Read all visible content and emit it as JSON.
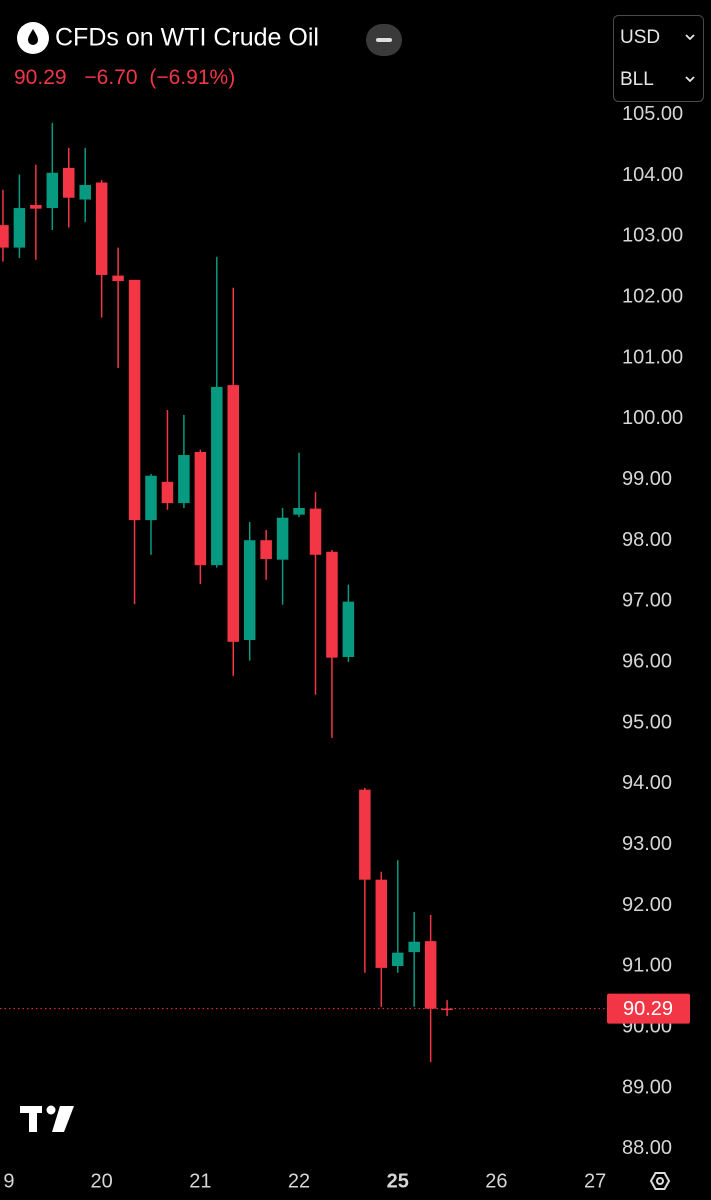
{
  "chart_data": {
    "type": "candlestick",
    "title": "CFDs on WTI Crude Oil",
    "quote": {
      "last": "90.29",
      "change": "−6.70",
      "change_pct": "(−6.91%)"
    },
    "currency": "USD",
    "unit": "BLL",
    "x": [
      0,
      1,
      2,
      3,
      4,
      5,
      6,
      7,
      8,
      9,
      10,
      11,
      12,
      13,
      14,
      15,
      16,
      17,
      18,
      19,
      20,
      21,
      22,
      23,
      24,
      25,
      26,
      27
    ],
    "open": [
      103.17,
      102.8,
      103.5,
      103.45,
      104.11,
      103.59,
      103.87,
      102.34,
      102.27,
      98.32,
      98.95,
      98.6,
      99.44,
      97.58,
      100.54,
      96.35,
      97.99,
      97.67,
      98.41,
      98.51,
      97.8,
      96.07,
      93.89,
      92.41,
      90.99,
      91.22,
      91.4,
      90.29
    ],
    "high": [
      103.75,
      104.0,
      104.16,
      104.85,
      104.44,
      104.44,
      103.91,
      102.8,
      102.27,
      99.08,
      100.13,
      100.05,
      99.48,
      102.65,
      102.14,
      98.29,
      98.16,
      98.52,
      99.43,
      98.78,
      97.83,
      97.26,
      93.92,
      92.54,
      92.73,
      91.88,
      91.83,
      90.43
    ],
    "low": [
      102.57,
      102.63,
      102.6,
      103.09,
      103.13,
      103.22,
      101.65,
      100.82,
      96.94,
      97.75,
      98.49,
      98.52,
      97.27,
      97.54,
      95.76,
      96.01,
      97.34,
      96.93,
      98.37,
      95.45,
      94.74,
      95.99,
      90.88,
      90.32,
      90.88,
      90.32,
      89.41,
      90.17
    ],
    "close": [
      102.8,
      103.45,
      103.44,
      104.03,
      103.62,
      103.83,
      102.35,
      102.25,
      98.32,
      99.05,
      98.6,
      99.39,
      97.58,
      100.51,
      96.32,
      97.99,
      97.68,
      98.36,
      98.52,
      97.75,
      96.06,
      96.98,
      92.41,
      90.96,
      91.21,
      91.39,
      90.29,
      90.29
    ],
    "up_color": "#089981",
    "down_color": "#f23645",
    "last_price": 90.29,
    "xlim": [
      -0.18,
      36.6
    ],
    "xticks": [
      {
        "value": 0,
        "label": "9"
      },
      {
        "value": 6,
        "label": "20"
      },
      {
        "value": 12,
        "label": "21"
      },
      {
        "value": 18,
        "label": "22"
      },
      {
        "value": 24,
        "label": "25"
      },
      {
        "value": 30,
        "label": "26"
      },
      {
        "value": 36,
        "label": "27"
      }
    ],
    "ylim": [
      87.72,
      106.87
    ],
    "yticks": [
      {
        "value": 88,
        "label": "88.00"
      },
      {
        "value": 89,
        "label": "89.00"
      },
      {
        "value": 90,
        "label": "90.00"
      },
      {
        "value": 91,
        "label": "91.00"
      },
      {
        "value": 92,
        "label": "92.00"
      },
      {
        "value": 93,
        "label": "93.00"
      },
      {
        "value": 94,
        "label": "94.00"
      },
      {
        "value": 95,
        "label": "95.00"
      },
      {
        "value": 96,
        "label": "96.00"
      },
      {
        "value": 97,
        "label": "97.00"
      },
      {
        "value": 98,
        "label": "98.00"
      },
      {
        "value": 99,
        "label": "99.00"
      },
      {
        "value": 100,
        "label": "100.00"
      },
      {
        "value": 101,
        "label": "101.00"
      },
      {
        "value": 102,
        "label": "102.00"
      },
      {
        "value": 103,
        "label": "103.00"
      },
      {
        "value": 104,
        "label": "104.00"
      },
      {
        "value": 105,
        "label": "105.00"
      }
    ]
  }
}
